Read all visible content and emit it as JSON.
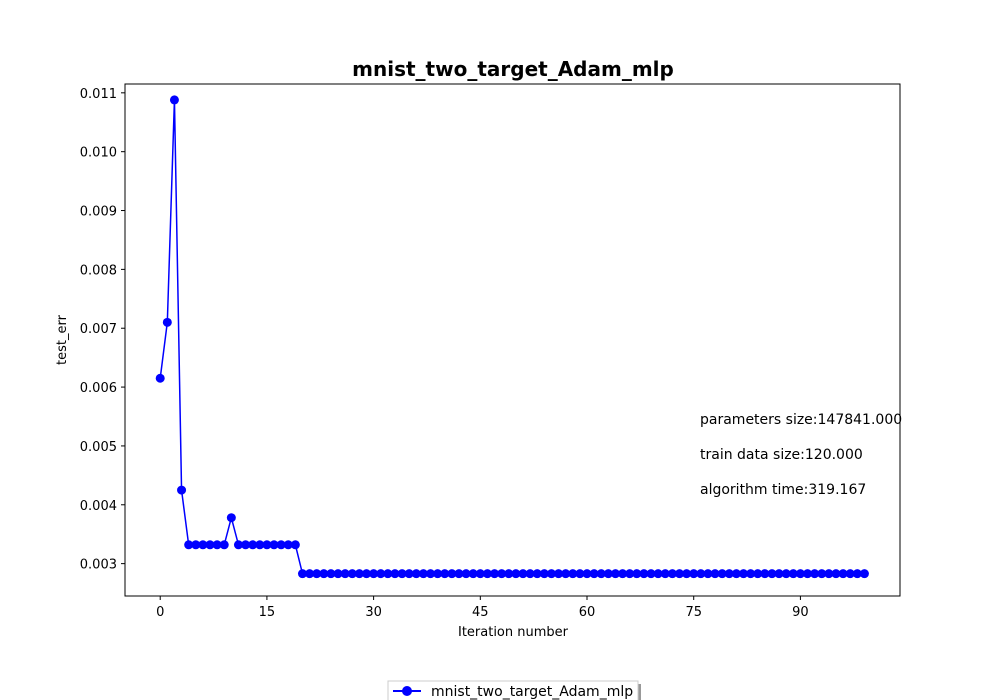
{
  "chart_data": {
    "type": "line",
    "title": "mnist_two_target_Adam_mlp",
    "xlabel": "Iteration number",
    "ylabel": "test_err",
    "xlim": [
      -4.95,
      104.0
    ],
    "ylim": [
      0.00245,
      0.01115
    ],
    "xticks": [
      0,
      15,
      30,
      45,
      60,
      75,
      90
    ],
    "xtick_labels": [
      "0",
      "15",
      "30",
      "45",
      "60",
      "75",
      "90"
    ],
    "yticks": [
      0.003,
      0.004,
      0.005,
      0.006,
      0.007,
      0.008,
      0.009,
      0.01,
      0.011
    ],
    "ytick_labels": [
      "0.003",
      "0.004",
      "0.005",
      "0.006",
      "0.007",
      "0.008",
      "0.009",
      "0.010",
      "0.011"
    ],
    "grid": false,
    "legend_placement": "bottom-center",
    "series": [
      {
        "name": "mnist_two_target_Adam_mlp",
        "color": "#0000ff",
        "marker": "circle",
        "x": [
          0,
          1,
          2,
          3,
          4,
          5,
          6,
          7,
          8,
          9,
          10,
          11,
          12,
          13,
          14,
          15,
          16,
          17,
          18,
          19,
          20,
          21,
          22,
          23,
          24,
          25,
          26,
          27,
          28,
          29,
          30,
          31,
          32,
          33,
          34,
          35,
          36,
          37,
          38,
          39,
          40,
          41,
          42,
          43,
          44,
          45,
          46,
          47,
          48,
          49,
          50,
          51,
          52,
          53,
          54,
          55,
          56,
          57,
          58,
          59,
          60,
          61,
          62,
          63,
          64,
          65,
          66,
          67,
          68,
          69,
          70,
          71,
          72,
          73,
          74,
          75,
          76,
          77,
          78,
          79,
          80,
          81,
          82,
          83,
          84,
          85,
          86,
          87,
          88,
          89,
          90,
          91,
          92,
          93,
          94,
          95,
          96,
          97,
          98,
          99
        ],
        "values": [
          0.00615,
          0.0071,
          0.01088,
          0.00425,
          0.00332,
          0.00332,
          0.00332,
          0.00332,
          0.00332,
          0.00332,
          0.00378,
          0.00332,
          0.00332,
          0.00332,
          0.00332,
          0.00332,
          0.00332,
          0.00332,
          0.00332,
          0.00332,
          0.00283,
          0.00283,
          0.00283,
          0.00283,
          0.00283,
          0.00283,
          0.00283,
          0.00283,
          0.00283,
          0.00283,
          0.00283,
          0.00283,
          0.00283,
          0.00283,
          0.00283,
          0.00283,
          0.00283,
          0.00283,
          0.00283,
          0.00283,
          0.00283,
          0.00283,
          0.00283,
          0.00283,
          0.00283,
          0.00283,
          0.00283,
          0.00283,
          0.00283,
          0.00283,
          0.00283,
          0.00283,
          0.00283,
          0.00283,
          0.00283,
          0.00283,
          0.00283,
          0.00283,
          0.00283,
          0.00283,
          0.00283,
          0.00283,
          0.00283,
          0.00283,
          0.00283,
          0.00283,
          0.00283,
          0.00283,
          0.00283,
          0.00283,
          0.00283,
          0.00283,
          0.00283,
          0.00283,
          0.00283,
          0.00283,
          0.00283,
          0.00283,
          0.00283,
          0.00283,
          0.00283,
          0.00283,
          0.00283,
          0.00283,
          0.00283,
          0.00283,
          0.00283,
          0.00283,
          0.00283,
          0.00283,
          0.00283,
          0.00283,
          0.00283,
          0.00283,
          0.00283,
          0.00283,
          0.00283,
          0.00283,
          0.00283,
          0.00283
        ]
      }
    ],
    "annotations": [
      "parameters size:147841.000",
      "train data size:120.000",
      "algorithm time:319.167"
    ]
  }
}
